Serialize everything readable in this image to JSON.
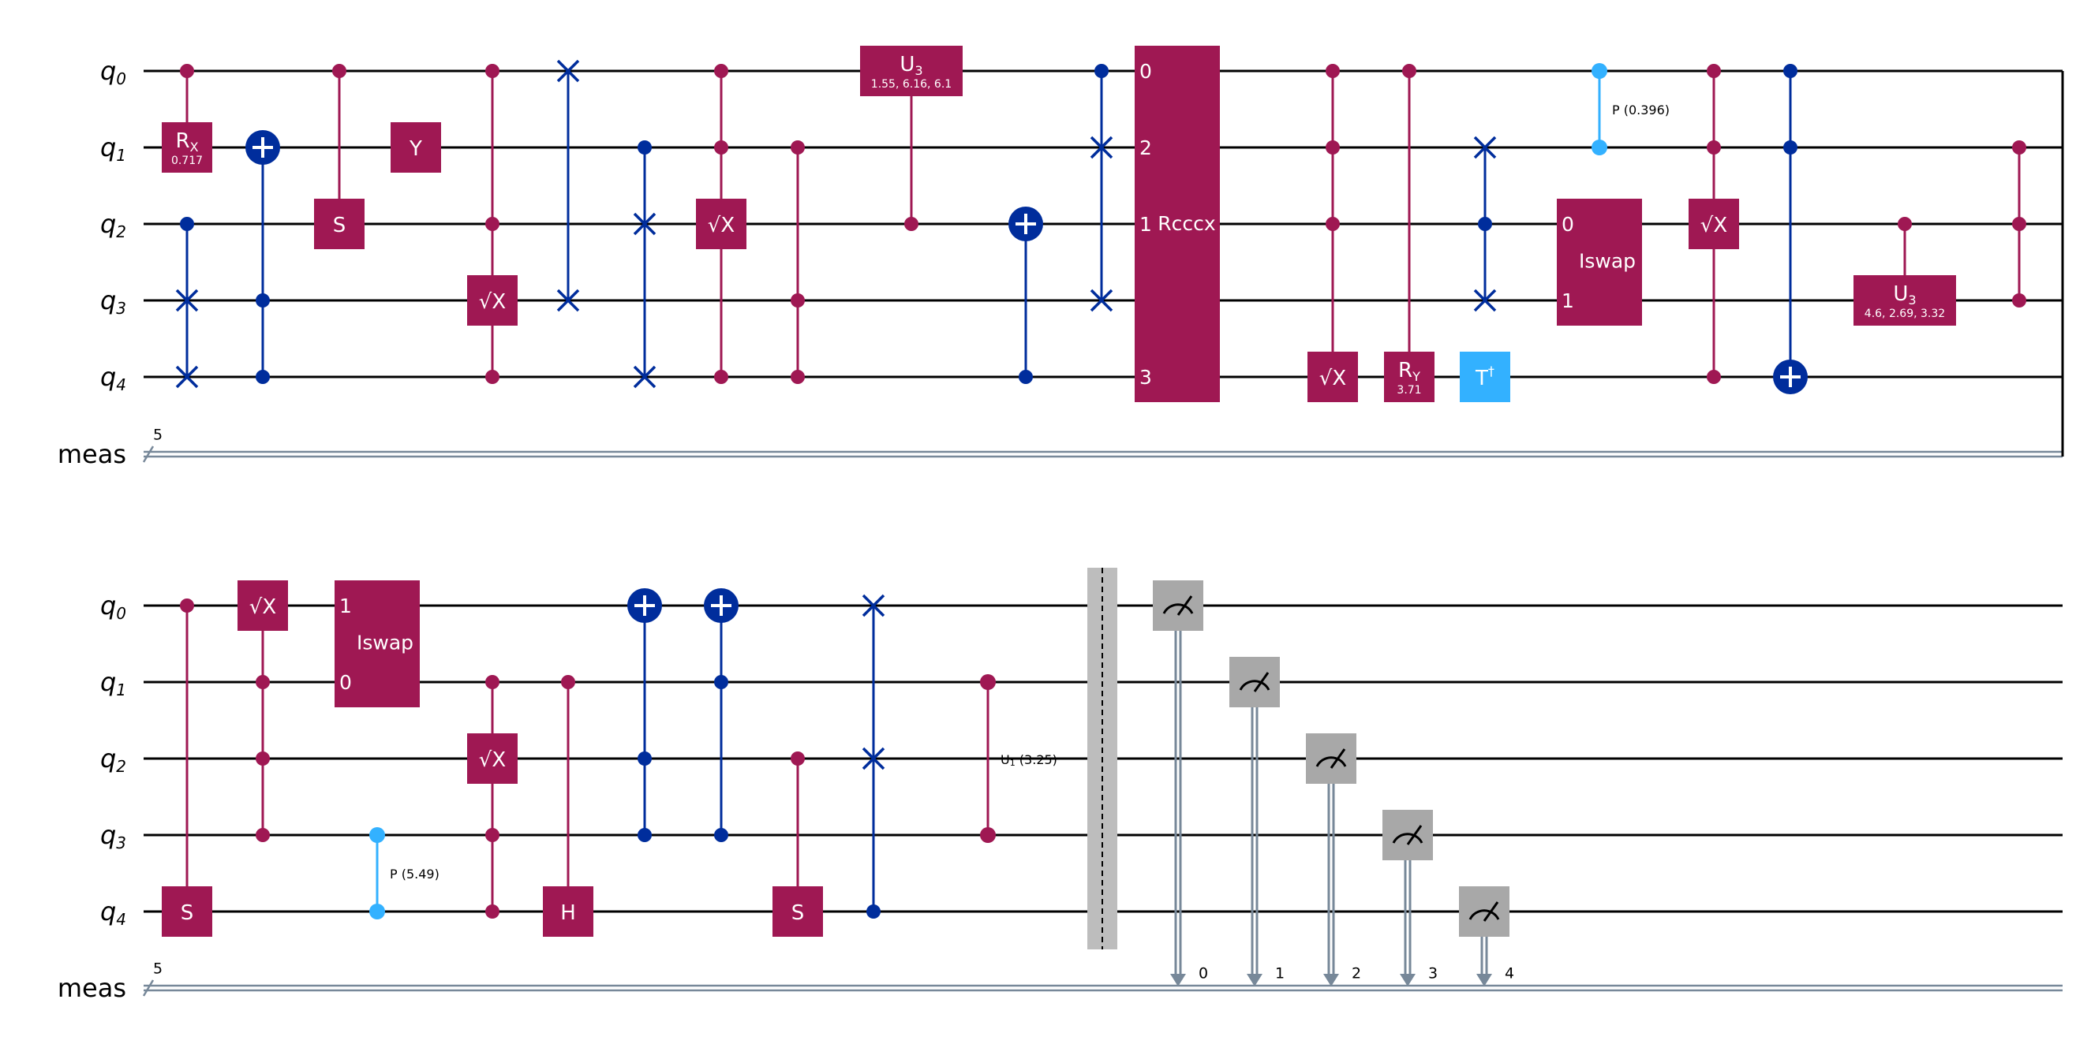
{
  "colors": {
    "wire": "#000000",
    "classical": "#778899",
    "gate_magenta": "#9f1853",
    "gate_blue": "#002d9c",
    "gate_cyan": "#33b1ff",
    "barrier": "#bdbdbd",
    "measure": "#a8a8a8"
  },
  "register_size": "5",
  "rows": [
    {
      "wires": [
        {
          "name": "q",
          "sub": "0"
        },
        {
          "name": "q",
          "sub": "1"
        },
        {
          "name": "q",
          "sub": "2"
        },
        {
          "name": "q",
          "sub": "3"
        },
        {
          "name": "q",
          "sub": "4"
        }
      ],
      "classical": "meas"
    },
    {
      "wires": [
        {
          "name": "q",
          "sub": "0"
        },
        {
          "name": "q",
          "sub": "1"
        },
        {
          "name": "q",
          "sub": "2"
        },
        {
          "name": "q",
          "sub": "3"
        },
        {
          "name": "q",
          "sub": "4"
        }
      ],
      "classical": "meas"
    }
  ],
  "gates": [
    {
      "id": "rx",
      "row": 0,
      "type": "box",
      "qubits": [
        1
      ],
      "controls": [
        0
      ],
      "color": "magenta",
      "label": "R",
      "sub": "X",
      "param": "0.717"
    },
    {
      "id": "swap-1",
      "row": 0,
      "type": "swap",
      "targets": [
        3,
        4
      ],
      "controls": [
        2
      ]
    },
    {
      "id": "cx-1",
      "row": 0,
      "type": "cnot",
      "target": 1,
      "controls": [
        3,
        4
      ]
    },
    {
      "id": "cs-1",
      "row": 0,
      "type": "box",
      "qubits": [
        2
      ],
      "controls": [
        0
      ],
      "color": "magenta",
      "label": "S"
    },
    {
      "id": "y",
      "row": 0,
      "type": "box",
      "qubits": [
        1
      ],
      "color": "magenta",
      "label": "Y"
    },
    {
      "id": "csx-1",
      "row": 0,
      "type": "box",
      "qubits": [
        3
      ],
      "controls": [
        0,
        2,
        4
      ],
      "color": "magenta",
      "label": "√X"
    },
    {
      "id": "swap-2",
      "row": 0,
      "type": "swap",
      "targets": [
        0,
        3
      ]
    },
    {
      "id": "swap-3",
      "row": 0,
      "type": "swap",
      "targets": [
        2,
        4
      ],
      "controls": [
        1
      ]
    },
    {
      "id": "csx-2",
      "row": 0,
      "type": "box",
      "qubits": [
        2
      ],
      "controls": [
        0,
        1,
        4
      ],
      "color": "magenta",
      "label": "√X"
    },
    {
      "id": "cz-1",
      "row": 0,
      "type": "dots",
      "qubits": [
        1,
        3,
        4
      ],
      "color": "magenta"
    },
    {
      "id": "cu3-1",
      "row": 0,
      "type": "box",
      "qubits": [
        0
      ],
      "controls": [
        2
      ],
      "color": "magenta",
      "label": "U",
      "sub": "3",
      "param": "1.55, 6.16, 6.1"
    },
    {
      "id": "cx-2",
      "row": 0,
      "type": "cnot",
      "target": 2,
      "controls": [
        4
      ]
    },
    {
      "id": "swap-4",
      "row": 0,
      "type": "swap",
      "targets": [
        1,
        3
      ],
      "controls": [
        0
      ]
    },
    {
      "id": "rcccx",
      "row": 0,
      "type": "box",
      "qubits": [
        0,
        1,
        2,
        3,
        4
      ],
      "color": "magenta",
      "label": "Rcccx",
      "pins": [
        {
          "q": 0,
          "t": "0"
        },
        {
          "q": 1,
          "t": "2"
        },
        {
          "q": 2,
          "t": "1"
        },
        {
          "q": 4,
          "t": "3"
        }
      ]
    },
    {
      "id": "csx-3",
      "row": 0,
      "type": "box",
      "qubits": [
        4
      ],
      "controls": [
        0,
        1,
        2
      ],
      "color": "magenta",
      "label": "√X"
    },
    {
      "id": "cry",
      "row": 0,
      "type": "box",
      "qubits": [
        4
      ],
      "controls": [
        0
      ],
      "color": "magenta",
      "label": "R",
      "sub": "Y",
      "param": "3.71"
    },
    {
      "id": "swap-5",
      "row": 0,
      "type": "swap",
      "targets": [
        1,
        3
      ],
      "controls": [
        2
      ]
    },
    {
      "id": "tdg",
      "row": 0,
      "type": "box",
      "qubits": [
        4
      ],
      "color": "cyan",
      "label": "T",
      "sup": "†"
    },
    {
      "id": "cp-1",
      "row": 0,
      "type": "phase",
      "qubits": [
        0,
        1
      ],
      "color": "cyan",
      "label": "P (0.396)"
    },
    {
      "id": "iswap-1",
      "row": 0,
      "type": "box",
      "qubits": [
        2,
        3
      ],
      "color": "magenta",
      "label": "Iswap",
      "pins": [
        {
          "q": 2,
          "t": "0"
        },
        {
          "q": 3,
          "t": "1"
        }
      ]
    },
    {
      "id": "csx-4",
      "row": 0,
      "type": "box",
      "qubits": [
        2
      ],
      "controls": [
        0,
        1,
        4
      ],
      "color": "magenta",
      "label": "√X"
    },
    {
      "id": "cx-3",
      "row": 0,
      "type": "cnot",
      "target": 4,
      "controls": [
        0,
        1
      ]
    },
    {
      "id": "cu3-2",
      "row": 0,
      "type": "box",
      "qubits": [
        3
      ],
      "controls": [
        2
      ],
      "color": "magenta",
      "label": "U",
      "sub": "3",
      "param": "4.6, 2.69, 3.32"
    },
    {
      "id": "cz-2",
      "row": 0,
      "type": "dots",
      "qubits": [
        1,
        2,
        3
      ],
      "color": "magenta"
    },
    {
      "id": "cs-2",
      "row": 1,
      "type": "box",
      "qubits": [
        4
      ],
      "controls": [
        0
      ],
      "color": "magenta",
      "label": "S"
    },
    {
      "id": "csx-5",
      "row": 1,
      "type": "box",
      "qubits": [
        0
      ],
      "controls": [
        1,
        2,
        3
      ],
      "color": "magenta",
      "label": "√X"
    },
    {
      "id": "iswap-2",
      "row": 1,
      "type": "box",
      "qubits": [
        0,
        1
      ],
      "color": "magenta",
      "label": "Iswap",
      "pins": [
        {
          "q": 0,
          "t": "1"
        },
        {
          "q": 1,
          "t": "0"
        }
      ]
    },
    {
      "id": "cp-2",
      "row": 1,
      "type": "phase",
      "qubits": [
        3,
        4
      ],
      "color": "cyan",
      "label": "P (5.49)"
    },
    {
      "id": "csx-6",
      "row": 1,
      "type": "box",
      "qubits": [
        2
      ],
      "controls": [
        1,
        3,
        4
      ],
      "color": "magenta",
      "label": "√X"
    },
    {
      "id": "ch",
      "row": 1,
      "type": "box",
      "qubits": [
        4
      ],
      "controls": [
        1
      ],
      "color": "magenta",
      "label": "H"
    },
    {
      "id": "cx-4",
      "row": 1,
      "type": "cnot",
      "target": 0,
      "controls": [
        2,
        3
      ]
    },
    {
      "id": "cx-5",
      "row": 1,
      "type": "cnot",
      "target": 0,
      "controls": [
        1,
        3
      ]
    },
    {
      "id": "cs-3",
      "row": 1,
      "type": "box",
      "qubits": [
        4
      ],
      "controls": [
        2
      ],
      "color": "magenta",
      "label": "S"
    },
    {
      "id": "swap-6",
      "row": 1,
      "type": "swap",
      "targets": [
        0,
        2
      ],
      "controls": [
        4
      ]
    },
    {
      "id": "cu1",
      "row": 1,
      "type": "phase",
      "qubits": [
        1,
        3
      ],
      "color": "magenta",
      "label": "U",
      "sub": "1",
      "after": " (3.25)"
    },
    {
      "id": "barrier",
      "row": 1,
      "type": "barrier"
    },
    {
      "id": "measure-0",
      "row": 1,
      "type": "measure",
      "qubit": 0,
      "bit": "0"
    },
    {
      "id": "measure-1",
      "row": 1,
      "type": "measure",
      "qubit": 1,
      "bit": "1"
    },
    {
      "id": "measure-2",
      "row": 1,
      "type": "measure",
      "qubit": 2,
      "bit": "2"
    },
    {
      "id": "measure-3",
      "row": 1,
      "type": "measure",
      "qubit": 3,
      "bit": "3"
    },
    {
      "id": "measure-4",
      "row": 1,
      "type": "measure",
      "qubit": 4,
      "bit": "4"
    }
  ]
}
